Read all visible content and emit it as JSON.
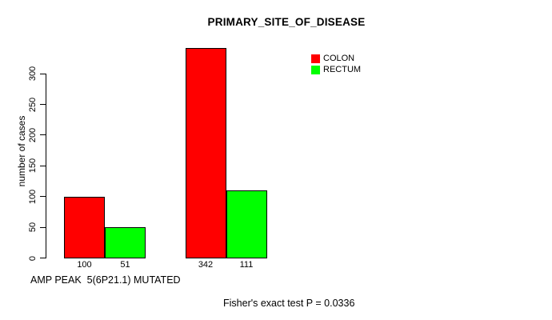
{
  "chart_data": {
    "type": "bar",
    "title": "PRIMARY_SITE_OF_DISEASE",
    "ylabel": "number of cases",
    "xlabel": "AMP PEAK  5(6P21.1) MUTATED",
    "annotation": "Fisher's exact test P = 0.0336",
    "categories": [
      "AMP PEAK 5(6P21.1)",
      "MUTATED"
    ],
    "series": [
      {
        "name": "COLON",
        "color": "#FF0000",
        "values": [
          100,
          342
        ]
      },
      {
        "name": "RECTUM",
        "color": "#00FF00",
        "values": [
          51,
          111
        ]
      }
    ],
    "yticks": [
      0,
      50,
      100,
      150,
      200,
      250,
      300
    ],
    "ylim": [
      0,
      342
    ],
    "grid": false,
    "legend_position": "top-right",
    "background": "#ffffff"
  }
}
